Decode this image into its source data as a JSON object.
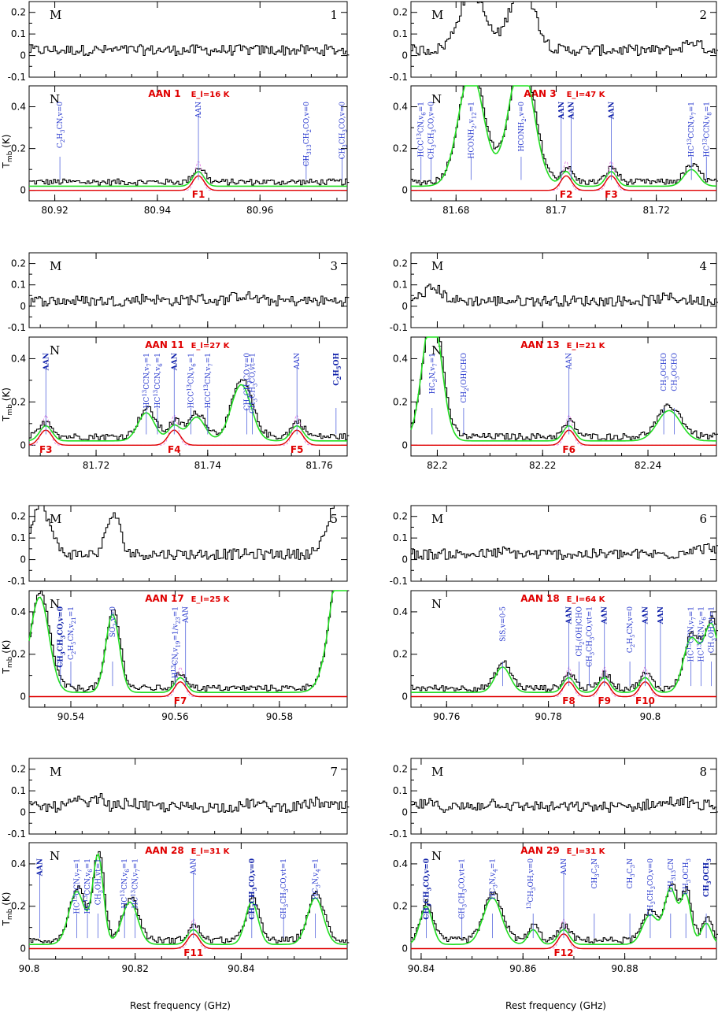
{
  "chart_data": {
    "type": "line",
    "xlabel": "Rest frequency (GHz)",
    "ylabel": "T_mb (K)",
    "top_letter": "M",
    "bottom_letter": "N",
    "ylim_top": [
      -0.1,
      0.25
    ],
    "ylim_bottom": [
      -0.05,
      0.5
    ],
    "yticks_top": [
      "0.2",
      "0.1",
      "0",
      "-0.1"
    ],
    "yticks_bottom": [
      "0.4",
      "0.2",
      "0"
    ],
    "panels": [
      {
        "number": "1",
        "xlim": [
          80.915,
          80.977
        ],
        "xticks": [
          "80.92",
          "80.94",
          "80.96"
        ],
        "aan_label": "AAN 1",
        "el_label": "E_l=16 K",
        "features": [
          {
            "label": "F1",
            "x": 80.948
          }
        ],
        "molecules": [
          {
            "label": "C2H3CN,v=0",
            "x": 80.921,
            "bold": false
          },
          {
            "label": "AAN",
            "x": 80.948,
            "bold": false
          },
          {
            "label": "CH313CH2CO,v=0",
            "x": 80.969,
            "bold": false
          },
          {
            "label": "CH3CH3CO,v=0",
            "x": 80.976,
            "bold": false
          }
        ]
      },
      {
        "number": "2",
        "xlim": [
          81.671,
          81.732
        ],
        "xticks": [
          "81.68",
          "81.7",
          "81.72"
        ],
        "aan_label": "AAN 3",
        "el_label": "E_l=47 K",
        "features": [
          {
            "label": "F2",
            "x": 81.702
          },
          {
            "label": "F3",
            "x": 81.711
          }
        ],
        "molecules": [
          {
            "label": "HCC13CN,v6=1",
            "x": 81.673,
            "bold": false
          },
          {
            "label": "CH3CH3CO,v=0",
            "x": 81.675,
            "bold": false
          },
          {
            "label": "HCONH2,v12=1",
            "x": 81.683,
            "bold": false
          },
          {
            "label": "HCONH2,v=0",
            "x": 81.693,
            "bold": false
          },
          {
            "label": "AAN",
            "x": 81.701,
            "bold": true
          },
          {
            "label": "AAN",
            "x": 81.703,
            "bold": true
          },
          {
            "label": "AAN",
            "x": 81.711,
            "bold": true
          },
          {
            "label": "HC13CCN,v7=1",
            "x": 81.727,
            "bold": false
          },
          {
            "label": "HC13CCN,v8=1",
            "x": 81.73,
            "bold": false
          }
        ]
      },
      {
        "number": "3",
        "xlim": [
          81.708,
          81.765
        ],
        "xticks": [
          "81.72",
          "81.74",
          "81.76"
        ],
        "aan_label": "AAN 11",
        "el_label": "E_l=27 K",
        "features": [
          {
            "label": "F3",
            "x": 81.711
          },
          {
            "label": "F4",
            "x": 81.734
          },
          {
            "label": "F5",
            "x": 81.756
          }
        ],
        "molecules": [
          {
            "label": "AAN",
            "x": 81.711,
            "bold": true
          },
          {
            "label": "HC13CCN,v7=1",
            "x": 81.729,
            "bold": false
          },
          {
            "label": "HC13CCN,v6=1",
            "x": 81.731,
            "bold": false
          },
          {
            "label": "AAN",
            "x": 81.734,
            "bold": true
          },
          {
            "label": "HCC13CN,v6=1",
            "x": 81.737,
            "bold": false
          },
          {
            "label": "HCC13CN,v7=1",
            "x": 81.74,
            "bold": false
          },
          {
            "label": "CH3CH3CO,v=0",
            "x": 81.747,
            "bold": false
          },
          {
            "label": "CH3CH3CO,vt=1",
            "x": 81.748,
            "bold": false
          },
          {
            "label": "AAN",
            "x": 81.756,
            "bold": false
          },
          {
            "label": "C2H5OH",
            "x": 81.763,
            "bold": true
          }
        ]
      },
      {
        "number": "4",
        "xlim": [
          82.195,
          82.253
        ],
        "xticks": [
          "82.2",
          "82.22",
          "82.24"
        ],
        "aan_label": "AAN 13",
        "el_label": "E_l=21 K",
        "features": [
          {
            "label": "F6",
            "x": 82.225
          }
        ],
        "molecules": [
          {
            "label": "HC3N,v7=1",
            "x": 82.199,
            "bold": false
          },
          {
            "label": "CH2(OH)CHO",
            "x": 82.205,
            "bold": false
          },
          {
            "label": "AAN",
            "x": 82.225,
            "bold": false
          },
          {
            "label": "CH3OCHO",
            "x": 82.243,
            "bold": false
          },
          {
            "label": "CH3OCHO",
            "x": 82.245,
            "bold": false
          }
        ]
      },
      {
        "number": "5",
        "xlim": [
          90.532,
          90.593
        ],
        "xticks": [
          "90.54",
          "90.56",
          "90.58"
        ],
        "aan_label": "AAN 17",
        "el_label": "E_l=25 K",
        "features": [
          {
            "label": "F7",
            "x": 90.561
          }
        ],
        "molecules": [
          {
            "label": "CH3CH3CO,v=0",
            "x": 90.538,
            "bold": true
          },
          {
            "label": "C2H5CN,v21=1",
            "x": 90.54,
            "bold": false
          },
          {
            "label": "SO2,v=0",
            "x": 90.548,
            "bold": false
          },
          {
            "label": "H13CN,v19=1/v23=1",
            "x": 90.56,
            "bold": false
          },
          {
            "label": "AAN",
            "x": 90.562,
            "bold": false
          }
        ]
      },
      {
        "number": "6",
        "xlim": [
          90.753,
          90.813
        ],
        "xticks": [
          "90.76",
          "90.78",
          "90.8"
        ],
        "aan_label": "AAN 18",
        "el_label": "E_l=64 K",
        "features": [
          {
            "label": "F8",
            "x": 90.784
          },
          {
            "label": "F9",
            "x": 90.791
          },
          {
            "label": "F10",
            "x": 90.799
          }
        ],
        "molecules": [
          {
            "label": "SiS,v=0-5",
            "x": 90.771,
            "bold": false
          },
          {
            "label": "AAN",
            "x": 90.784,
            "bold": true
          },
          {
            "label": "CH2(OH)CHO",
            "x": 90.786,
            "bold": false
          },
          {
            "label": "CH3CH3CO,vt=1",
            "x": 90.788,
            "bold": false
          },
          {
            "label": "AAN",
            "x": 90.791,
            "bold": true
          },
          {
            "label": "C2H5CN,v=0",
            "x": 90.796,
            "bold": false
          },
          {
            "label": "AAN",
            "x": 90.799,
            "bold": true
          },
          {
            "label": "AAN",
            "x": 90.802,
            "bold": true
          },
          {
            "label": "HC13CCN,v7=1",
            "x": 90.808,
            "bold": false
          },
          {
            "label": "HC13CCN,v6=1",
            "x": 90.81,
            "bold": false
          },
          {
            "label": "CH3OH,vt=1",
            "x": 90.812,
            "bold": false
          }
        ]
      },
      {
        "number": "7",
        "xlim": [
          90.8,
          90.86
        ],
        "xticks": [
          "90.8",
          "90.82",
          "90.84"
        ],
        "aan_label": "AAN 28",
        "el_label": "E_l=31 K",
        "features": [
          {
            "label": "F11",
            "x": 90.831
          }
        ],
        "molecules": [
          {
            "label": "AAN",
            "x": 90.802,
            "bold": true
          },
          {
            "label": "HC13CCN,v7=1",
            "x": 90.809,
            "bold": false
          },
          {
            "label": "HC13CCN,v6=1",
            "x": 90.811,
            "bold": false
          },
          {
            "label": "CH3OH,vt=1",
            "x": 90.813,
            "bold": false
          },
          {
            "label": "HC13CN,v6=1",
            "x": 90.818,
            "bold": false
          },
          {
            "label": "HC13CN,v7=1",
            "x": 90.82,
            "bold": false
          },
          {
            "label": "AAN",
            "x": 90.831,
            "bold": false
          },
          {
            "label": "CH3CH3CO,v=0",
            "x": 90.842,
            "bold": true
          },
          {
            "label": "CH3CH3CO,vt=1",
            "x": 90.848,
            "bold": false
          },
          {
            "label": "HC3N,v4=1",
            "x": 90.854,
            "bold": false
          }
        ]
      },
      {
        "number": "8",
        "xlim": [
          90.838,
          90.898
        ],
        "xticks": [
          "90.84",
          "90.86",
          "90.88"
        ],
        "aan_label": "AAN 29",
        "el_label": "E_l=31 K",
        "features": [
          {
            "label": "F12",
            "x": 90.868
          }
        ],
        "molecules": [
          {
            "label": "CH3CH3CO,v=0",
            "x": 90.841,
            "bold": true
          },
          {
            "label": "CH3CH3CO,vt=1",
            "x": 90.848,
            "bold": false
          },
          {
            "label": "HC3N,v4=1",
            "x": 90.854,
            "bold": false
          },
          {
            "label": "13CH3OH,v=0",
            "x": 90.862,
            "bold": false
          },
          {
            "label": "AAN",
            "x": 90.868,
            "bold": false
          },
          {
            "label": "CH3C3N",
            "x": 90.874,
            "bold": false
          },
          {
            "label": "CH3C3N",
            "x": 90.881,
            "bold": false
          },
          {
            "label": "CH3CH3CO,v=0",
            "x": 90.885,
            "bold": false
          },
          {
            "label": "CH313CN",
            "x": 90.889,
            "bold": false
          },
          {
            "label": "CH3OCH3",
            "x": 90.892,
            "bold": false
          },
          {
            "label": "CH3OCH3",
            "x": 90.896,
            "bold": true
          }
        ]
      }
    ]
  }
}
